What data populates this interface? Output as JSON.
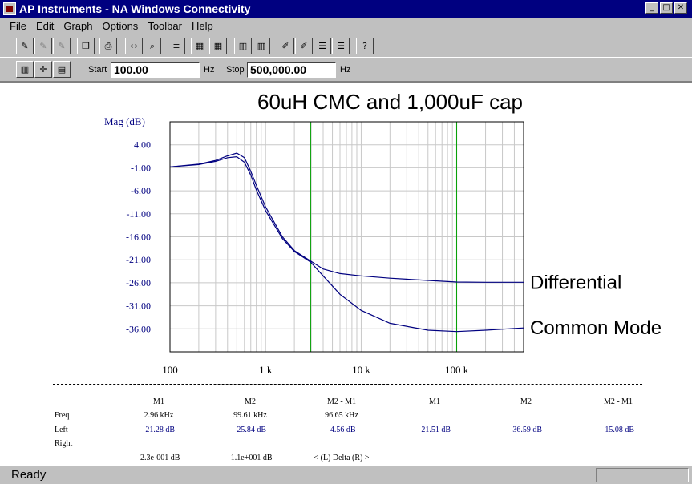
{
  "window": {
    "title": "AP Instruments - NA Windows Connectivity"
  },
  "menu": [
    "File",
    "Edit",
    "Graph",
    "Options",
    "Toolbar",
    "Help"
  ],
  "toolbar_icons": [
    "probe-icon",
    "probe-disabled-icon",
    "probe-disabled-icon",
    "copy-icon",
    "print-icon",
    "zoom-fit-icon",
    "zoom-icon",
    "marker-icon",
    "auto-icon",
    "auto-icon",
    "split-icon",
    "split-icon",
    "edit-icon",
    "edit-icon",
    "bars-icon",
    "bars-icon",
    "help-icon"
  ],
  "range": {
    "start_label": "Start",
    "start_value": "100.00",
    "start_unit": "Hz",
    "stop_label": "Stop",
    "stop_value": "500,000.00",
    "stop_unit": "Hz"
  },
  "chart_data": {
    "type": "line",
    "title": "60uH CMC and 1,000uF cap",
    "ylabel": "Mag (dB)",
    "x_scale": "log",
    "xlim": [
      100,
      500000
    ],
    "x_tick_labels": [
      "100",
      "1 k",
      "10 k",
      "100 k"
    ],
    "x_ticks": [
      100,
      1000,
      10000,
      100000
    ],
    "ylim": [
      -41,
      9
    ],
    "y_ticks": [
      4,
      -1,
      -6,
      -11,
      -16,
      -21,
      -26,
      -31,
      -36
    ],
    "y_tick_labels": [
      "4.00",
      "-1.00",
      "-6.00",
      "-11.00",
      "-16.00",
      "-21.00",
      "-26.00",
      "-31.00",
      "-36.00"
    ],
    "grid": true,
    "markers": [
      {
        "label": "M1",
        "x": 2960
      },
      {
        "label": "M2",
        "x": 99610
      }
    ],
    "series": [
      {
        "name": "Differential",
        "color": "#000080",
        "x": [
          100,
          200,
          300,
          400,
          500,
          600,
          700,
          800,
          1000,
          1500,
          2000,
          2960,
          4000,
          6000,
          10000,
          20000,
          50000,
          99610,
          200000,
          500000
        ],
        "y": [
          -0.8,
          -0.2,
          0.6,
          1.6,
          2.2,
          1.2,
          -1.8,
          -4.8,
          -9.5,
          -16,
          -19,
          -21.28,
          -23,
          -24,
          -24.5,
          -25,
          -25.5,
          -25.84,
          -25.9,
          -25.9
        ]
      },
      {
        "name": "Common Mode",
        "color": "#000080",
        "x": [
          100,
          200,
          300,
          400,
          500,
          600,
          700,
          800,
          1000,
          1500,
          2000,
          2960,
          4000,
          6000,
          10000,
          20000,
          50000,
          99610,
          200000,
          500000
        ],
        "y": [
          -0.8,
          -0.3,
          0.4,
          1.2,
          1.4,
          0.2,
          -2.6,
          -5.8,
          -10.3,
          -16.4,
          -19.2,
          -21.51,
          -24.5,
          -28.5,
          -32,
          -34.8,
          -36.3,
          -36.59,
          -36.3,
          -35.8
        ]
      }
    ]
  },
  "measurements": {
    "headers": [
      "M1",
      "M2",
      "M2 - M1",
      "M1",
      "M2",
      "M2 - M1"
    ],
    "row_labels": [
      "Freq",
      "Left",
      "Right"
    ],
    "freq": [
      "2.96 kHz",
      "99.61 kHz",
      "96.65 kHz"
    ],
    "left": [
      "-21.28 dB",
      "-25.84 dB",
      "-4.56 dB",
      "-21.51 dB",
      "-36.59 dB",
      "-15.08 dB"
    ],
    "right": [
      "-2.3e-001 dB",
      "-1.1e+001 dB",
      "< (L) Delta (R) >"
    ]
  },
  "status": {
    "text": "Ready"
  }
}
